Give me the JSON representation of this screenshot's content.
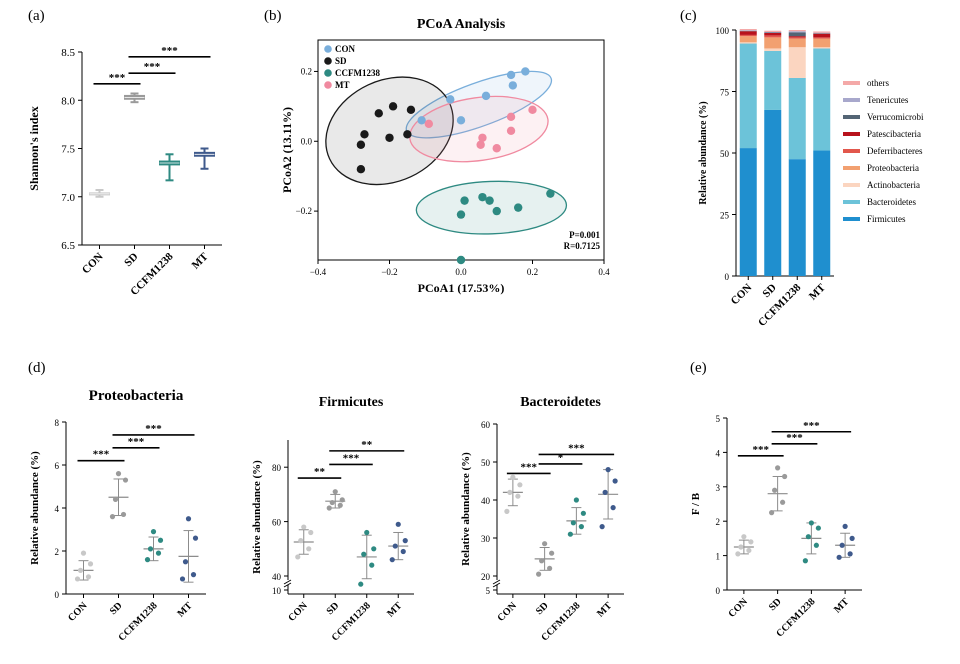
{
  "colors": {
    "CON": "#c8c8c8",
    "SD": "#9a9a9a",
    "CCFM1238": "#2e8a82",
    "MT": "#3f5a8c",
    "pcoa_CON": "#79aedb",
    "pcoa_SD": "#1a1a1a",
    "pcoa_CCFM1238": "#2e8a82",
    "pcoa_MT": "#f08aa0",
    "mean_bar": "#8c8c8c"
  },
  "chart_data": [
    {
      "id": "a",
      "panel_label": "(a)",
      "type": "box",
      "title": "",
      "ylabel": "Shannon's index",
      "ylim": [
        6.5,
        8.5
      ],
      "yticks": [
        6.5,
        7.0,
        7.5,
        8.0,
        8.5
      ],
      "ytick_labels": [
        "6.5",
        "7.0",
        "7.5",
        "8.0",
        "8.5"
      ],
      "categories": [
        "CON",
        "SD",
        "CCFM1238",
        "MT"
      ],
      "boxes": [
        {
          "group": "CON",
          "min": 7.0,
          "q1": 7.02,
          "median": 7.03,
          "q3": 7.04,
          "max": 7.07
        },
        {
          "group": "SD",
          "min": 7.98,
          "q1": 8.01,
          "median": 8.03,
          "q3": 8.05,
          "max": 8.07
        },
        {
          "group": "CCFM1238",
          "min": 7.17,
          "q1": 7.33,
          "median": 7.35,
          "q3": 7.37,
          "max": 7.44
        },
        {
          "group": "MT",
          "min": 7.29,
          "q1": 7.42,
          "median": 7.44,
          "q3": 7.46,
          "max": 7.5
        }
      ],
      "significance": [
        {
          "from": 0,
          "to": 1,
          "y": 8.17,
          "label": "***"
        },
        {
          "from": 1,
          "to": 2,
          "y": 8.28,
          "label": "***"
        },
        {
          "from": 1,
          "to": 3,
          "y": 8.45,
          "label": "***"
        }
      ]
    },
    {
      "id": "b",
      "panel_label": "(b)",
      "type": "scatter",
      "title": "PCoA Analysis",
      "xlabel": "PCoA1 (17.53%)",
      "ylabel": "PCoA2 (13.11%)",
      "xlim": [
        -0.4,
        0.4
      ],
      "ylim": [
        -0.34,
        0.29
      ],
      "xticks": [
        -0.4,
        -0.2,
        0.0,
        0.2,
        0.4
      ],
      "xtick_labels": [
        "−0.4",
        "−0.2",
        "0.0",
        "0.2",
        "0.4"
      ],
      "yticks": [
        -0.2,
        0.0,
        0.2
      ],
      "ytick_labels": [
        "−0.2",
        "0.0",
        "0.2"
      ],
      "legend": [
        "CON",
        "SD",
        "CCFM1238",
        "MT"
      ],
      "stats": [
        "P=0.001",
        "R=0.7125"
      ],
      "series": [
        {
          "name": "CON",
          "points": [
            [
              0.14,
              0.19
            ],
            [
              0.18,
              0.2
            ],
            [
              0.145,
              0.16
            ],
            [
              0.07,
              0.13
            ],
            [
              -0.03,
              0.12
            ],
            [
              0.0,
              0.06
            ],
            [
              -0.11,
              0.06
            ]
          ],
          "ellipse": {
            "cx": 0.05,
            "cy": 0.105,
            "rx": 0.215,
            "ry": 0.062,
            "angle": 20
          }
        },
        {
          "name": "SD",
          "points": [
            [
              -0.19,
              0.1
            ],
            [
              -0.23,
              0.08
            ],
            [
              -0.14,
              0.09
            ],
            [
              -0.27,
              0.02
            ],
            [
              -0.2,
              0.01
            ],
            [
              -0.15,
              0.02
            ],
            [
              -0.28,
              -0.01
            ],
            [
              -0.28,
              -0.08
            ]
          ],
          "ellipse": {
            "cx": -0.2,
            "cy": 0.03,
            "rx": 0.185,
            "ry": 0.145,
            "angle": 25
          }
        },
        {
          "name": "CCFM1238",
          "points": [
            [
              0.25,
              -0.15
            ],
            [
              0.01,
              -0.17
            ],
            [
              0.06,
              -0.16
            ],
            [
              0.08,
              -0.17
            ],
            [
              0.0,
              -0.21
            ],
            [
              0.1,
              -0.2
            ],
            [
              0.16,
              -0.19
            ],
            [
              0.0,
              -0.34
            ]
          ],
          "ellipse": {
            "cx": 0.085,
            "cy": -0.19,
            "rx": 0.21,
            "ry": 0.075,
            "angle": 2
          }
        },
        {
          "name": "MT",
          "points": [
            [
              0.2,
              0.09
            ],
            [
              0.14,
              0.07
            ],
            [
              0.06,
              0.01
            ],
            [
              0.14,
              0.03
            ],
            [
              0.1,
              -0.02
            ],
            [
              0.055,
              -0.01
            ],
            [
              -0.09,
              0.05
            ]
          ],
          "ellipse": {
            "cx": 0.05,
            "cy": 0.035,
            "rx": 0.195,
            "ry": 0.09,
            "angle": 8
          }
        }
      ]
    },
    {
      "id": "c",
      "panel_label": "(c)",
      "type": "stacked_bar",
      "ylabel": "Relative abundance (%)",
      "ylim": [
        0,
        100
      ],
      "yticks": [
        0,
        25,
        50,
        75,
        100
      ],
      "ytick_labels": [
        "0",
        "25",
        "50",
        "75",
        "100"
      ],
      "categories": [
        "CON",
        "SD",
        "CCFM1238",
        "MT"
      ],
      "series": [
        {
          "name": "Firmicutes",
          "color": "#1f8fcf",
          "values": [
            52,
            67.5,
            47.5,
            51
          ]
        },
        {
          "name": "Bacteroidetes",
          "color": "#6cc3d9",
          "values": [
            42.5,
            24,
            33,
            41.5
          ]
        },
        {
          "name": "Actinobacteria",
          "color": "#fbd5c0",
          "values": [
            0.5,
            1,
            12.5,
            0.5
          ]
        },
        {
          "name": "Proteobacteria",
          "color": "#f2a070",
          "values": [
            2.5,
            4.5,
            3.5,
            3.5
          ]
        },
        {
          "name": "Deferribacteres",
          "color": "#e2574c",
          "values": [
            0.5,
            0.8,
            0.5,
            0.5
          ]
        },
        {
          "name": "Patescibacteria",
          "color": "#b8121c",
          "values": [
            1.5,
            1.0,
            0.5,
            1.5
          ]
        },
        {
          "name": "Verrucomicrobi",
          "color": "#546575",
          "values": [
            0.2,
            0.2,
            1.5,
            0.2
          ]
        },
        {
          "name": "Tenericutes",
          "color": "#a8a8cc",
          "values": [
            0.2,
            0.2,
            0.5,
            0.2
          ]
        },
        {
          "name": "others",
          "color": "#f4a9a8",
          "values": [
            0.5,
            0.5,
            0.5,
            0.5
          ]
        }
      ],
      "legend_order": [
        "others",
        "Tenericutes",
        "Verrucomicrobi",
        "Patescibacteria",
        "Deferribacteres",
        "Proteobacteria",
        "Actinobacteria",
        "Bacteroidetes",
        "Firmicutes"
      ]
    },
    {
      "id": "d1",
      "panel_label": "(d)",
      "type": "dot_plot",
      "title": "Proteobacteria",
      "ylabel": "Relative abundance (%)",
      "ylim": [
        0,
        8
      ],
      "yticks": [
        0,
        2,
        4,
        6,
        8
      ],
      "ytick_labels": [
        "0",
        "2",
        "4",
        "6",
        "8"
      ],
      "categories": [
        "CON",
        "SD",
        "CCFM1238",
        "MT"
      ],
      "groups": [
        {
          "group": "CON",
          "points": [
            0.7,
            0.8,
            1.1,
            1.4,
            1.9
          ],
          "mean": 1.1,
          "sd": 0.45
        },
        {
          "group": "SD",
          "points": [
            3.6,
            3.7,
            4.4,
            5.3,
            5.6
          ],
          "mean": 4.5,
          "sd": 0.85
        },
        {
          "group": "CCFM1238",
          "points": [
            1.6,
            1.9,
            2.1,
            2.5,
            2.9
          ],
          "mean": 2.1,
          "sd": 0.55
        },
        {
          "group": "MT",
          "points": [
            0.7,
            0.9,
            1.5,
            2.6,
            3.5
          ],
          "mean": 1.75,
          "sd": 1.2
        }
      ],
      "significance": [
        {
          "from": 0,
          "to": 1,
          "y": 6.2,
          "label": "***"
        },
        {
          "from": 1,
          "to": 2,
          "y": 6.8,
          "label": "***"
        },
        {
          "from": 1,
          "to": 3,
          "y": 7.4,
          "label": "***"
        }
      ]
    },
    {
      "id": "d2",
      "type": "dot_plot",
      "title": "Firmicutes",
      "ylabel": "Relative abundance (%)",
      "axis_break": true,
      "ylim": [
        10,
        90
      ],
      "yticks": [
        10,
        40,
        60,
        80
      ],
      "ytick_labels": [
        "10",
        "40",
        "60",
        "80"
      ],
      "categories": [
        "CON",
        "SD",
        "CCFM1238",
        "MT"
      ],
      "groups": [
        {
          "group": "CON",
          "points": [
            47,
            50,
            53,
            56,
            58
          ],
          "mean": 52.5,
          "sd": 4.5
        },
        {
          "group": "SD",
          "points": [
            65,
            66,
            67,
            68,
            71
          ],
          "mean": 67.5,
          "sd": 2.5
        },
        {
          "group": "CCFM1238",
          "points": [
            37,
            44,
            48,
            50,
            56
          ],
          "mean": 47,
          "sd": 8
        },
        {
          "group": "MT",
          "points": [
            46,
            49,
            51,
            53,
            59
          ],
          "mean": 51,
          "sd": 5
        }
      ],
      "significance": [
        {
          "from": 0,
          "to": 1,
          "y": 76,
          "label": "**"
        },
        {
          "from": 1,
          "to": 2,
          "y": 81,
          "label": "***"
        },
        {
          "from": 1,
          "to": 3,
          "y": 86,
          "label": "**"
        }
      ]
    },
    {
      "id": "d3",
      "type": "dot_plot",
      "title": "Bacteroidetes",
      "ylabel": "Relative abundance (%)",
      "axis_break": true,
      "ylim": [
        5,
        60
      ],
      "yticks": [
        5,
        20,
        30,
        40,
        50,
        60
      ],
      "ytick_labels": [
        "5",
        "20",
        "30",
        "40",
        "50",
        "60"
      ],
      "categories": [
        "CON",
        "SD",
        "CCFM1238",
        "MT"
      ],
      "groups": [
        {
          "group": "CON",
          "points": [
            37,
            41,
            42,
            44,
            46
          ],
          "mean": 42,
          "sd": 3.5
        },
        {
          "group": "SD",
          "points": [
            20.5,
            22,
            24,
            26,
            28.5
          ],
          "mean": 24.5,
          "sd": 3
        },
        {
          "group": "CCFM1238",
          "points": [
            31,
            33,
            34,
            36.5,
            40
          ],
          "mean": 34.5,
          "sd": 3.5
        },
        {
          "group": "MT",
          "points": [
            33,
            38,
            42,
            45,
            48
          ],
          "mean": 41.5,
          "sd": 6.5
        }
      ],
      "significance": [
        {
          "from": 0,
          "to": 1,
          "y": 47,
          "label": "***"
        },
        {
          "from": 1,
          "to": 2,
          "y": 49.5,
          "label": "*"
        },
        {
          "from": 1,
          "to": 3,
          "y": 52,
          "label": "***"
        }
      ]
    },
    {
      "id": "e",
      "panel_label": "(e)",
      "type": "dot_plot",
      "ylabel": "F / B",
      "ylim": [
        0,
        5
      ],
      "yticks": [
        0,
        1,
        2,
        3,
        4,
        5
      ],
      "ytick_labels": [
        "0",
        "1",
        "2",
        "3",
        "4",
        "5"
      ],
      "categories": [
        "CON",
        "SD",
        "CCFM1238",
        "MT"
      ],
      "groups": [
        {
          "group": "CON",
          "points": [
            1.05,
            1.15,
            1.25,
            1.4,
            1.55
          ],
          "mean": 1.25,
          "sd": 0.2
        },
        {
          "group": "SD",
          "points": [
            2.25,
            2.55,
            2.9,
            3.3,
            3.55
          ],
          "mean": 2.8,
          "sd": 0.5
        },
        {
          "group": "CCFM1238",
          "points": [
            0.85,
            1.3,
            1.55,
            1.8,
            1.95
          ],
          "mean": 1.5,
          "sd": 0.45
        },
        {
          "group": "MT",
          "points": [
            0.95,
            1.05,
            1.3,
            1.5,
            1.85
          ],
          "mean": 1.3,
          "sd": 0.35
        }
      ],
      "significance": [
        {
          "from": 0,
          "to": 1,
          "y": 3.9,
          "label": "***"
        },
        {
          "from": 1,
          "to": 2,
          "y": 4.25,
          "label": "***"
        },
        {
          "from": 1,
          "to": 3,
          "y": 4.6,
          "label": "***"
        }
      ]
    }
  ]
}
